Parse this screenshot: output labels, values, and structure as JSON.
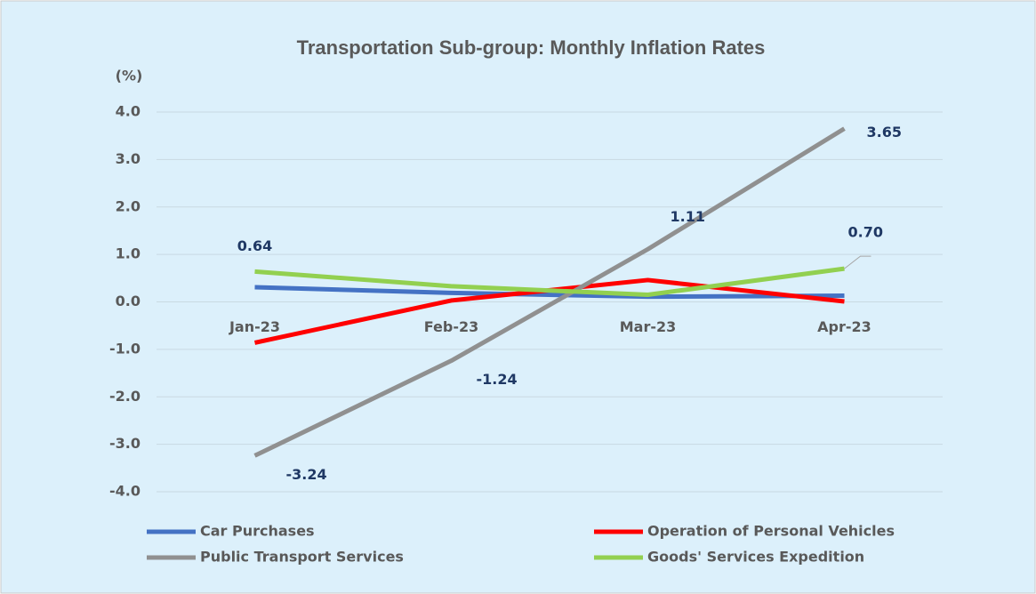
{
  "chart_data": {
    "type": "line",
    "title": "Transportation Sub-group: Monthly Inflation Rates",
    "y_label": "(%)",
    "categories": [
      "Jan-23",
      "Feb-23",
      "Mar-23",
      "Apr-23"
    ],
    "series": [
      {
        "name": "Car Purchases",
        "color": "#4472c4",
        "values": [
          0.31,
          0.19,
          0.11,
          0.13
        ]
      },
      {
        "name": "Operation of Personal Vehicles",
        "color": "#ff0000",
        "values": [
          -0.86,
          0.03,
          0.46,
          0.01
        ]
      },
      {
        "name": "Public Transport Services",
        "color": "#909090",
        "values": [
          -3.24,
          -1.24,
          1.11,
          3.65
        ],
        "value_labels": [
          "-3.24",
          "-1.24",
          "1.11",
          "3.65"
        ]
      },
      {
        "name": "Goods' Services Expedition",
        "color": "#92d050",
        "values": [
          0.64,
          0.33,
          0.15,
          0.7
        ],
        "value_labels": [
          "0.64",
          null,
          null,
          "0.70"
        ]
      }
    ],
    "ylim": [
      -4,
      4
    ],
    "yticks": [
      {
        "value": -4,
        "label": "-4.0"
      },
      {
        "value": -3,
        "label": "-3.0"
      },
      {
        "value": -2,
        "label": "-2.0"
      },
      {
        "value": -1,
        "label": "-1.0"
      },
      {
        "value": 0,
        "label": "0.0"
      },
      {
        "value": 1,
        "label": "1.0"
      },
      {
        "value": 2,
        "label": "2.0"
      },
      {
        "value": 3,
        "label": "3.0"
      },
      {
        "value": 4,
        "label": "4.0"
      }
    ],
    "grid": true,
    "legend": "bottom"
  }
}
